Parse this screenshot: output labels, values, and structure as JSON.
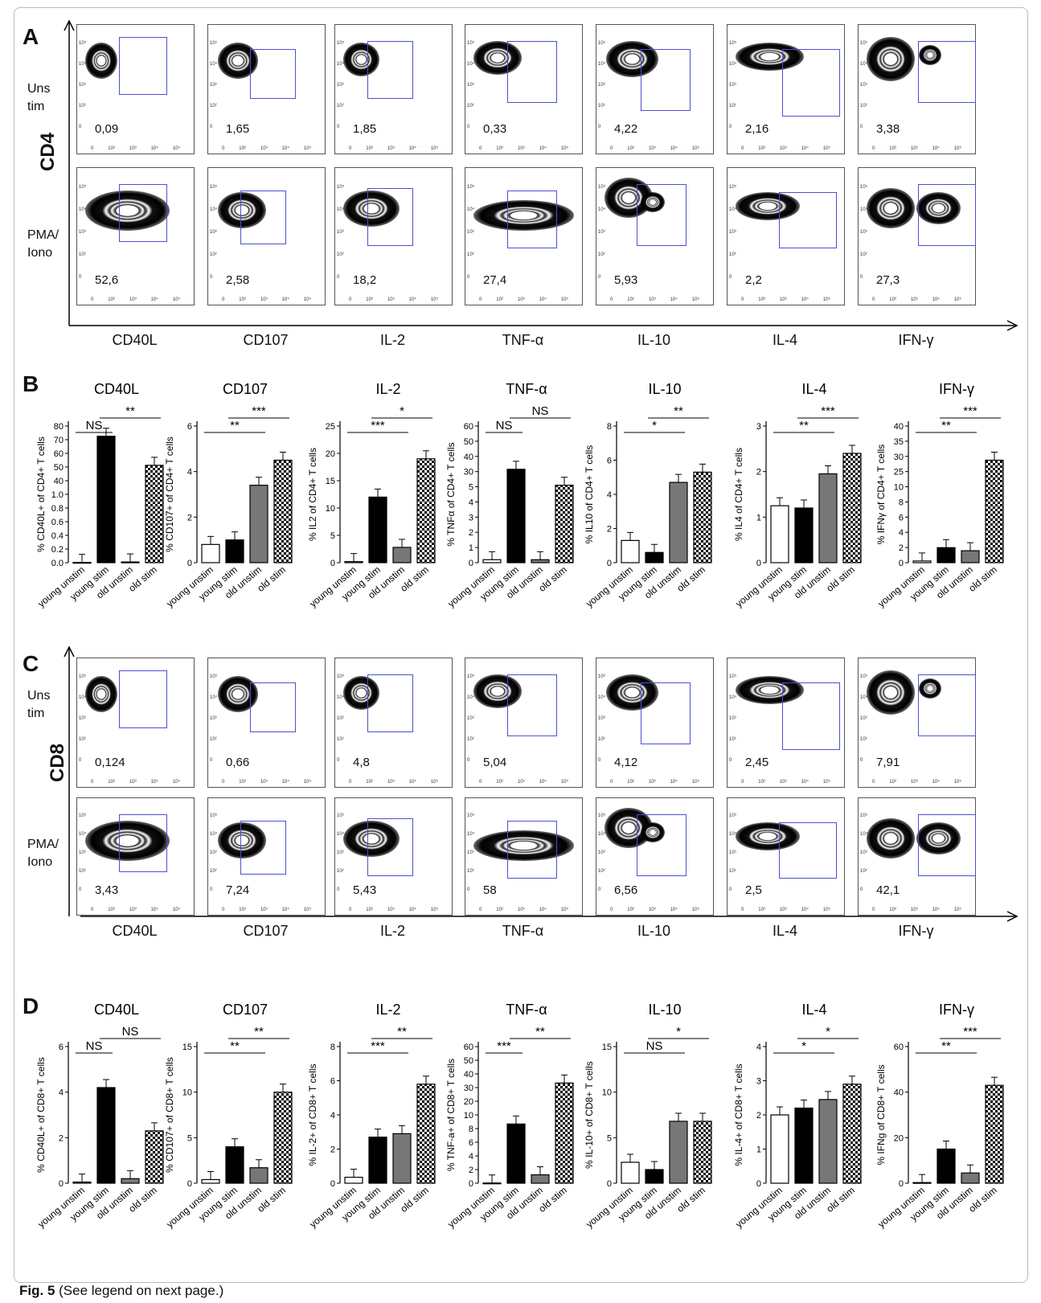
{
  "panel_labels": {
    "a": "A",
    "b": "B",
    "c": "C",
    "d": "D"
  },
  "flow": {
    "markers": [
      "CD40L",
      "CD107",
      "IL-2",
      "TNF-α",
      "IL-10",
      "IL-4",
      "IFN-γ"
    ],
    "row_labels": {
      "unstim_l1": "Uns",
      "unstim_l2": "tim",
      "stim_l1": "PMA/",
      "stim_l2": "Iono"
    },
    "cd4_label": "CD4",
    "cd8_label": "CD8",
    "cd4_unstim": [
      "0,09",
      "1,65",
      "1,85",
      "0,33",
      "4,22",
      "2,16",
      "3,38"
    ],
    "cd4_stim": [
      "52,6",
      "2,58",
      "18,2",
      "27,4",
      "5,93",
      "2,2",
      "27,3"
    ],
    "cd8_unstim": [
      "0,124",
      "0,66",
      "4,8",
      "5,04",
      "4,12",
      "2,45",
      "7,91"
    ],
    "cd8_stim": [
      "3,43",
      "7,24",
      "5,43",
      "58",
      "6,56",
      "2,5",
      "42,1"
    ],
    "tick_labels": [
      "0",
      "10²",
      "10³",
      "10⁴",
      "10⁵"
    ]
  },
  "categories": [
    "young unstim",
    "young stim",
    "old unstim",
    "old stim"
  ],
  "chart_data": [
    {
      "panel": "B",
      "type": "bar",
      "title": "CD40L",
      "ylabel": "% CD40L+ of CD4+ T cells",
      "ylim": [
        0,
        80
      ],
      "ticks": [
        "0.0",
        "0.2",
        "0.4",
        "0.6",
        "0.8",
        "1.0",
        "40",
        "50",
        "60",
        "70",
        "80"
      ],
      "values": [
        0.18,
        74,
        0.42,
        57
      ],
      "sig": [
        {
          "from": 0,
          "to": 1,
          "label": "NS"
        },
        {
          "from": 1,
          "to": 3,
          "label": "**"
        }
      ]
    },
    {
      "panel": "B",
      "type": "bar",
      "title": "CD107",
      "ylabel": "% CD107+ of CD4+ T cells",
      "ylim": [
        0,
        6
      ],
      "ticks": [
        "0",
        "2",
        "4",
        "6"
      ],
      "values": [
        0.8,
        1.0,
        3.4,
        4.5
      ],
      "sig": [
        {
          "from": 0,
          "to": 2,
          "label": "**"
        },
        {
          "from": 1,
          "to": 3,
          "label": "***"
        }
      ]
    },
    {
      "panel": "B",
      "type": "bar",
      "title": "IL-2",
      "ylabel": "% IL2 of CD4+ T cells",
      "ylim": [
        0,
        25
      ],
      "ticks": [
        "0",
        "5",
        "10",
        "15",
        "20",
        "25"
      ],
      "values": [
        0.2,
        12,
        2.8,
        19
      ],
      "sig": [
        {
          "from": 0,
          "to": 2,
          "label": "***"
        },
        {
          "from": 1,
          "to": 3,
          "label": "*"
        }
      ]
    },
    {
      "panel": "B",
      "type": "bar",
      "title": "TNF-α",
      "ylabel": "% TNFα of CD4+ T cells",
      "ylim": [
        0,
        60
      ],
      "ticks": [
        "0",
        "1",
        "2",
        "3",
        "4",
        "5",
        "30",
        "40",
        "50",
        "60"
      ],
      "values": [
        1.3,
        41,
        1.3,
        34
      ],
      "sig": [
        {
          "from": 0,
          "to": 1,
          "label": "NS"
        },
        {
          "from": 1,
          "to": 3,
          "label": "NS"
        }
      ]
    },
    {
      "panel": "B",
      "type": "bar",
      "title": "IL-10",
      "ylabel": "% IL10 of CD4+ T cells",
      "ylim": [
        0,
        8
      ],
      "ticks": [
        "0",
        "2",
        "4",
        "6",
        "8"
      ],
      "values": [
        1.3,
        0.6,
        4.7,
        5.3
      ],
      "sig": [
        {
          "from": 0,
          "to": 2,
          "label": "*"
        },
        {
          "from": 1,
          "to": 3,
          "label": "**"
        }
      ]
    },
    {
      "panel": "B",
      "type": "bar",
      "title": "IL-4",
      "ylabel": "% IL4 of CD4+ T cells",
      "ylim": [
        0,
        3
      ],
      "ticks": [
        "0",
        "1",
        "2",
        "3"
      ],
      "values": [
        1.25,
        1.2,
        1.95,
        2.4
      ],
      "sig": [
        {
          "from": 0,
          "to": 2,
          "label": "**"
        },
        {
          "from": 1,
          "to": 3,
          "label": "***"
        }
      ]
    },
    {
      "panel": "B",
      "type": "bar",
      "title": "IFN-γ",
      "ylabel": "% IFNγ of CD4+ T cells",
      "ylim": [
        0,
        40
      ],
      "ticks": [
        "0",
        "2",
        "4",
        "6",
        "8",
        "10",
        "25",
        "30",
        "35",
        "40"
      ],
      "values": [
        0.5,
        4.4,
        3.5,
        30
      ],
      "sig": [
        {
          "from": 0,
          "to": 2,
          "label": "**"
        },
        {
          "from": 1,
          "to": 3,
          "label": "***"
        }
      ]
    },
    {
      "panel": "D",
      "type": "bar",
      "title": "CD40L",
      "ylabel": "% CD40L+ of CD8+ T cells",
      "ylim": [
        0,
        6
      ],
      "ticks": [
        "0",
        "2",
        "4",
        "6"
      ],
      "values": [
        0.05,
        4.2,
        0.2,
        2.3
      ],
      "sig": [
        {
          "from": 0,
          "to": 1,
          "label": "NS"
        },
        {
          "from": 1,
          "to": 3,
          "label": "NS"
        }
      ]
    },
    {
      "panel": "D",
      "type": "bar",
      "title": "CD107",
      "ylabel": "% CD107+ of CD8+ T cells",
      "ylim": [
        0,
        15
      ],
      "ticks": [
        "0",
        "5",
        "10",
        "15"
      ],
      "values": [
        0.4,
        4.0,
        1.7,
        10
      ],
      "sig": [
        {
          "from": 0,
          "to": 2,
          "label": "**"
        },
        {
          "from": 1,
          "to": 3,
          "label": "**"
        }
      ]
    },
    {
      "panel": "D",
      "type": "bar",
      "title": "IL-2",
      "ylabel": "% IL-2+ of CD8+ T cells",
      "ylim": [
        0,
        8
      ],
      "ticks": [
        "0",
        "2",
        "4",
        "6",
        "8"
      ],
      "values": [
        0.35,
        2.7,
        2.9,
        5.8
      ],
      "sig": [
        {
          "from": 0,
          "to": 2,
          "label": "***"
        },
        {
          "from": 1,
          "to": 3,
          "label": "**"
        }
      ]
    },
    {
      "panel": "D",
      "type": "bar",
      "title": "TNF-α",
      "ylabel": "% TNF-a+ of CD8+ T cells",
      "ylim": [
        0,
        60
      ],
      "ticks": [
        "0",
        "2",
        "4",
        "6",
        "8",
        "10",
        "20",
        "30",
        "40",
        "50",
        "60"
      ],
      "values": [
        0.1,
        26,
        3.7,
        44
      ],
      "sig": [
        {
          "from": 0,
          "to": 1,
          "label": "***"
        },
        {
          "from": 1,
          "to": 3,
          "label": "**"
        }
      ]
    },
    {
      "panel": "D",
      "type": "bar",
      "title": "IL-10",
      "ylabel": "% IL-10+ of CD8+ T cells",
      "ylim": [
        0,
        15
      ],
      "ticks": [
        "0",
        "5",
        "10",
        "15"
      ],
      "values": [
        2.3,
        1.5,
        6.8,
        6.8
      ],
      "sig": [
        {
          "from": 0,
          "to": 2,
          "label": "NS"
        },
        {
          "from": 1,
          "to": 3,
          "label": "*"
        }
      ]
    },
    {
      "panel": "D",
      "type": "bar",
      "title": "IL-4",
      "ylabel": "% IL-4+ of CD8+ T cells",
      "ylim": [
        0,
        4
      ],
      "ticks": [
        "0",
        "1",
        "2",
        "3",
        "4"
      ],
      "values": [
        2.0,
        2.2,
        2.45,
        2.9
      ],
      "sig": [
        {
          "from": 0,
          "to": 2,
          "label": "*"
        },
        {
          "from": 1,
          "to": 3,
          "label": "*"
        }
      ]
    },
    {
      "panel": "D",
      "type": "bar",
      "title": "IFN-γ",
      "ylabel": "% IFNg of CD8+ T cells",
      "ylim": [
        0,
        60
      ],
      "ticks": [
        "0",
        "20",
        "40",
        "60"
      ],
      "values": [
        0.3,
        15,
        4.5,
        43
      ],
      "sig": [
        {
          "from": 0,
          "to": 2,
          "label": "**"
        },
        {
          "from": 1,
          "to": 3,
          "label": "***"
        }
      ]
    }
  ],
  "caption": {
    "fig": "Fig. 5",
    "text": " (See legend on next page.)"
  }
}
